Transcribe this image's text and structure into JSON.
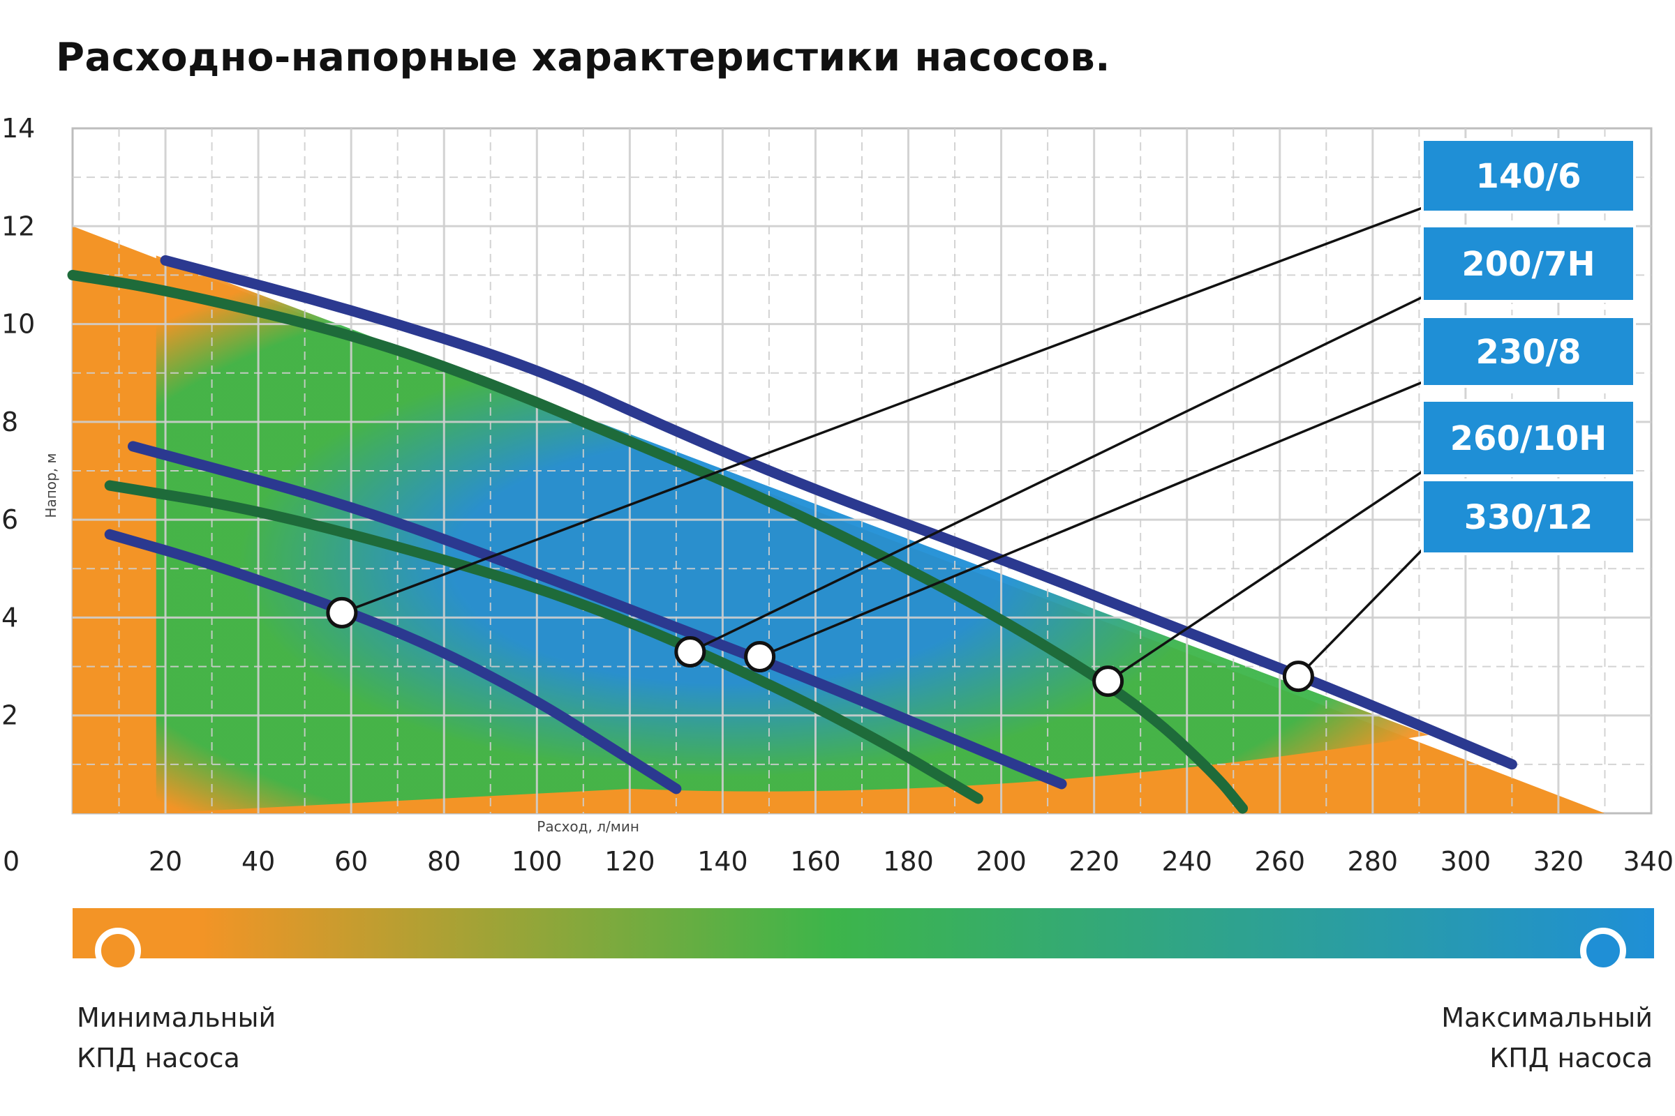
{
  "title": "Расходно-напорные характеристики насосов.",
  "colors": {
    "min_efficiency": "#f39426",
    "mid_efficiency": "#3db54a",
    "max_efficiency": "#1f8fd6",
    "curve_blue": "#2b3990",
    "curve_green": "#1e6b3a",
    "label_bg": "#1f8fd6",
    "grid": "#cfcfcf"
  },
  "chart_data": {
    "type": "line",
    "title": "Расходно-напорные характеристики насосов.",
    "xlabel": "Расход, л/мин",
    "ylabel": "Напор, м",
    "xlim": [
      0,
      340
    ],
    "ylim": [
      0,
      14
    ],
    "x_ticks": [
      0,
      20,
      40,
      60,
      80,
      100,
      120,
      140,
      160,
      180,
      200,
      220,
      240,
      260,
      280,
      300,
      320,
      340
    ],
    "y_ticks": [
      2,
      4,
      6,
      8,
      10,
      12,
      14
    ],
    "grid": true,
    "efficiency_zone": {
      "boundary": [
        [
          0,
          12.0
        ],
        [
          330,
          0
        ]
      ],
      "description_min": "Минимальный КПД насоса",
      "description_max": "Максимальный КПД насоса"
    },
    "series": [
      {
        "name": "140/6",
        "color": "blue",
        "points": [
          [
            8,
            5.7
          ],
          [
            30,
            5.1
          ],
          [
            60,
            4.1
          ],
          [
            80,
            3.3
          ],
          [
            100,
            2.3
          ],
          [
            115,
            1.4
          ],
          [
            130,
            0.5
          ]
        ],
        "marker": [
          58,
          4.1
        ]
      },
      {
        "name": "200/7H",
        "color": "green",
        "points": [
          [
            8,
            6.7
          ],
          [
            40,
            6.2
          ],
          [
            80,
            5.2
          ],
          [
            110,
            4.3
          ],
          [
            140,
            3.1
          ],
          [
            170,
            1.7
          ],
          [
            195,
            0.3
          ]
        ],
        "marker": [
          133,
          3.3
        ]
      },
      {
        "name": "230/8",
        "color": "blue",
        "points": [
          [
            13,
            7.5
          ],
          [
            60,
            6.3
          ],
          [
            100,
            4.9
          ],
          [
            130,
            3.8
          ],
          [
            160,
            2.7
          ],
          [
            190,
            1.5
          ],
          [
            213,
            0.6
          ]
        ],
        "marker": [
          148,
          3.2
        ]
      },
      {
        "name": "260/10H",
        "color": "green",
        "points": [
          [
            0,
            11.0
          ],
          [
            20,
            10.7
          ],
          [
            60,
            9.8
          ],
          [
            90,
            8.8
          ],
          [
            120,
            7.6
          ],
          [
            150,
            6.4
          ],
          [
            180,
            5.0
          ],
          [
            205,
            3.7
          ],
          [
            230,
            2.2
          ],
          [
            246,
            0.8
          ],
          [
            252,
            0.1
          ]
        ],
        "marker": [
          223,
          2.7
        ]
      },
      {
        "name": "330/12",
        "color": "blue",
        "points": [
          [
            20,
            11.3
          ],
          [
            60,
            10.3
          ],
          [
            100,
            9.1
          ],
          [
            130,
            7.8
          ],
          [
            160,
            6.6
          ],
          [
            200,
            5.2
          ],
          [
            240,
            3.7
          ],
          [
            270,
            2.6
          ],
          [
            310,
            1.0
          ]
        ],
        "marker": [
          264,
          2.8
        ]
      }
    ]
  }
}
